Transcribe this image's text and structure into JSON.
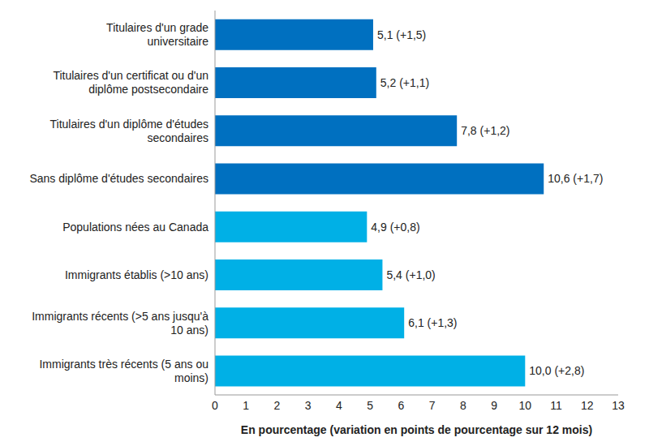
{
  "chart_data": {
    "type": "bar",
    "orientation": "horizontal",
    "categories": [
      "Titulaires d'un grade universitaire",
      "Titulaires d'un certificat ou d'un diplôme postsecondaire",
      "Titulaires d'un diplôme d'études secondaires",
      "Sans diplôme d'études secondaires",
      "Populations nées au Canada",
      "Immigrants établis (>10 ans)",
      "Immigrants récents (>5 ans jusqu'à 10 ans)",
      "Immigrants très récents (5 ans ou moins)"
    ],
    "values": [
      5.1,
      5.2,
      7.8,
      10.6,
      4.9,
      5.4,
      6.1,
      10.0
    ],
    "value_labels": [
      "5,1 (+1,5)",
      "5,2 (+1,1)",
      "7,8 (+1,2)",
      "10,6 (+1,7)",
      "4,9 (+0,8)",
      "5,4 (+1,0)",
      "6,1 (+1,3)",
      "10,0 (+2,8)"
    ],
    "colors": [
      "#0070c0",
      "#0070c0",
      "#0070c0",
      "#0070c0",
      "#00b0e6",
      "#00b0e6",
      "#00b0e6",
      "#00b0e6"
    ],
    "xlabel": "En pourcentage (variation en points de pourcentage sur 12 mois)",
    "xlim": [
      0,
      13
    ],
    "xticks": [
      0,
      1,
      2,
      3,
      4,
      5,
      6,
      7,
      8,
      9,
      10,
      11,
      12,
      13
    ],
    "data_labels": true,
    "grid": false
  }
}
